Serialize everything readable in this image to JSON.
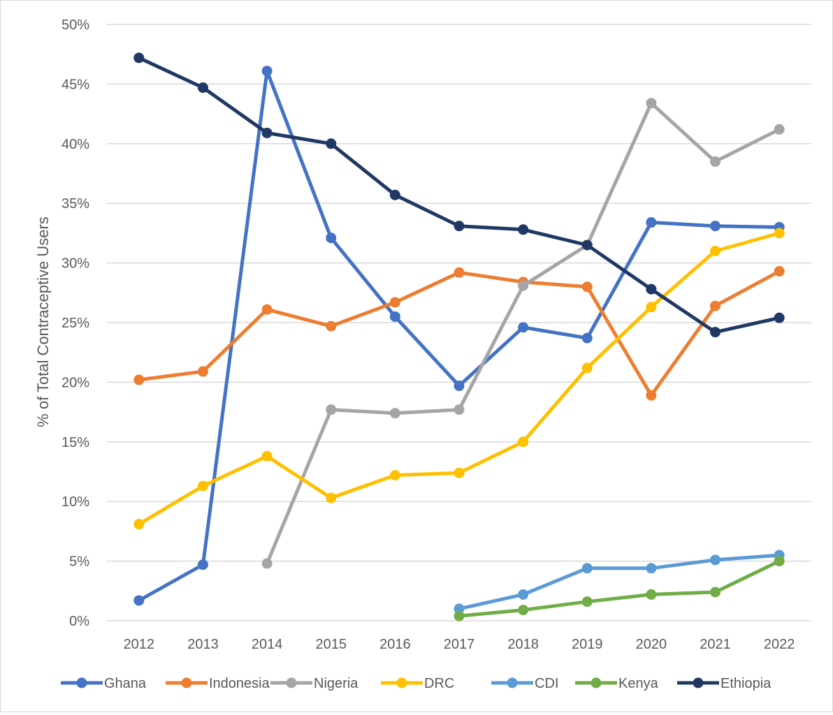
{
  "chart_data": {
    "type": "line",
    "title": "",
    "xlabel": "",
    "ylabel": "% of Total Contraceptive Users",
    "x": [
      "2012",
      "2013",
      "2014",
      "2015",
      "2016",
      "2017",
      "2018",
      "2019",
      "2020",
      "2021",
      "2022"
    ],
    "ylim": [
      0,
      0.5
    ],
    "yticks": [
      "0%",
      "5%",
      "10%",
      "15%",
      "20%",
      "25%",
      "30%",
      "35%",
      "40%",
      "45%",
      "50%"
    ],
    "grid": true,
    "legend_position": "bottom",
    "series": [
      {
        "name": "Ghana",
        "color": "#4472C4",
        "values": [
          0.017,
          0.047,
          0.461,
          0.321,
          0.255,
          0.197,
          0.246,
          0.237,
          0.334,
          0.331,
          0.33
        ]
      },
      {
        "name": "Indonesia",
        "color": "#ED7D31",
        "values": [
          0.202,
          0.209,
          0.261,
          0.247,
          0.267,
          0.292,
          0.284,
          0.28,
          0.189,
          0.264,
          0.293
        ]
      },
      {
        "name": "Nigeria",
        "color": "#A5A5A5",
        "values": [
          null,
          null,
          0.048,
          0.177,
          0.174,
          0.177,
          0.281,
          0.315,
          0.434,
          0.385,
          0.412
        ]
      },
      {
        "name": "DRC",
        "color": "#FFC000",
        "values": [
          0.081,
          0.113,
          0.138,
          0.103,
          0.122,
          0.124,
          0.15,
          0.212,
          0.263,
          0.31,
          0.325
        ]
      },
      {
        "name": "CDI",
        "color": "#5B9BD5",
        "values": [
          null,
          null,
          null,
          null,
          null,
          0.01,
          0.022,
          0.044,
          0.044,
          0.051,
          0.055
        ]
      },
      {
        "name": "Kenya",
        "color": "#70AD47",
        "values": [
          null,
          null,
          null,
          null,
          null,
          0.004,
          0.009,
          0.016,
          0.022,
          0.024,
          0.05
        ]
      },
      {
        "name": "Ethiopia",
        "color": "#203864",
        "values": [
          0.472,
          0.447,
          0.409,
          0.4,
          0.357,
          0.331,
          0.328,
          0.315,
          0.278,
          0.242,
          0.254
        ]
      }
    ]
  }
}
